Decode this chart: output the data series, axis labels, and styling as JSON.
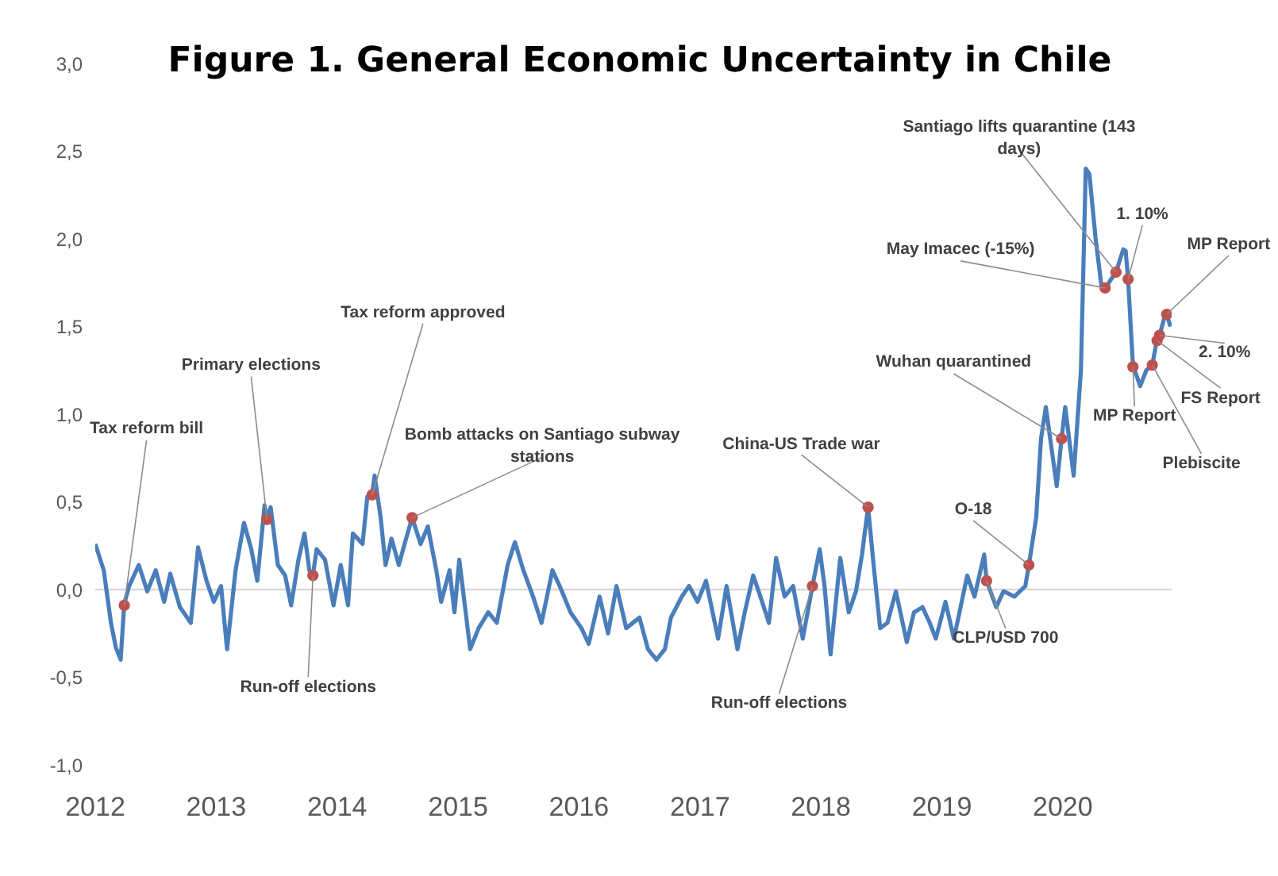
{
  "chart_data": {
    "type": "line",
    "title": "Figure 1. General Economic Uncertainty in Chile",
    "xlim": [
      2012,
      2020.9
    ],
    "xticks": [
      2012,
      2013,
      2014,
      2015,
      2016,
      2017,
      2018,
      2019,
      2020
    ],
    "ylim": [
      -1,
      3
    ],
    "yticks": [
      {
        "value": -1,
        "label": "-1,0"
      },
      {
        "value": -0.5,
        "label": "-0,5"
      },
      {
        "value": 0,
        "label": "0,0"
      },
      {
        "value": 0.5,
        "label": "0,5"
      },
      {
        "value": 1,
        "label": "1,0"
      },
      {
        "value": 1.5,
        "label": "1,5"
      },
      {
        "value": 2,
        "label": "2,0"
      },
      {
        "value": 2.5,
        "label": "2,5"
      },
      {
        "value": 3,
        "label": "3,0"
      }
    ],
    "ref_lines": [
      {
        "axis": "y",
        "value": 0,
        "color": "#d9d9d9"
      }
    ],
    "series": [
      {
        "color": "#4a7ebb",
        "marker": "none",
        "x": [
          2012.0,
          2012.07,
          2012.13,
          2012.17,
          2012.21,
          2012.24,
          2012.28,
          2012.36,
          2012.43,
          2012.5,
          2012.57,
          2012.62,
          2012.7,
          2012.79,
          2012.85,
          2012.92,
          2012.98,
          2013.04,
          2013.09,
          2013.16,
          2013.23,
          2013.29,
          2013.34,
          2013.4,
          2013.42,
          2013.45,
          2013.51,
          2013.57,
          2013.62,
          2013.68,
          2013.73,
          2013.77,
          2013.8,
          2013.83,
          2013.9,
          2013.97,
          2014.03,
          2014.09,
          2014.13,
          2014.21,
          2014.25,
          2014.29,
          2014.31,
          2014.36,
          2014.4,
          2014.45,
          2014.51,
          2014.57,
          2014.62,
          2014.69,
          2014.75,
          2014.82,
          2014.86,
          2014.93,
          2014.97,
          2015.01,
          2015.1,
          2015.17,
          2015.25,
          2015.32,
          2015.41,
          2015.47,
          2015.54,
          2015.62,
          2015.69,
          2015.78,
          2015.84,
          2015.93,
          2016.02,
          2016.08,
          2016.17,
          2016.24,
          2016.31,
          2016.39,
          2016.5,
          2016.57,
          2016.64,
          2016.71,
          2016.76,
          2016.85,
          2016.91,
          2016.98,
          2017.05,
          2017.15,
          2017.22,
          2017.31,
          2017.37,
          2017.44,
          2017.5,
          2017.57,
          2017.63,
          2017.7,
          2017.77,
          2017.85,
          2017.93,
          2017.99,
          2018.03,
          2018.08,
          2018.16,
          2018.23,
          2018.29,
          2018.34,
          2018.39,
          2018.44,
          2018.49,
          2018.55,
          2018.62,
          2018.71,
          2018.77,
          2018.84,
          2018.9,
          2018.95,
          2019.03,
          2019.1,
          2019.21,
          2019.27,
          2019.35,
          2019.37,
          2019.45,
          2019.51,
          2019.6,
          2019.69,
          2019.72,
          2019.78,
          2019.82,
          2019.86,
          2019.95,
          2019.99,
          2020.02,
          2020.09,
          2020.15,
          2020.19,
          2020.22,
          2020.27,
          2020.32,
          2020.35,
          2020.39,
          2020.44,
          2020.5,
          2020.52,
          2020.54,
          2020.58,
          2020.64,
          2020.69,
          2020.74,
          2020.78,
          2020.8,
          2020.84,
          2020.86,
          2020.89
        ],
        "values": [
          0.26,
          0.11,
          -0.19,
          -0.33,
          -0.4,
          -0.08,
          0.02,
          0.14,
          -0.01,
          0.11,
          -0.07,
          0.09,
          -0.1,
          -0.19,
          0.24,
          0.05,
          -0.07,
          0.02,
          -0.34,
          0.11,
          0.38,
          0.23,
          0.05,
          0.48,
          0.4,
          0.47,
          0.14,
          0.08,
          -0.09,
          0.17,
          0.32,
          0.11,
          0.08,
          0.23,
          0.17,
          -0.09,
          0.14,
          -0.09,
          0.32,
          0.26,
          0.53,
          0.55,
          0.65,
          0.41,
          0.14,
          0.29,
          0.14,
          0.29,
          0.41,
          0.26,
          0.36,
          0.11,
          -0.07,
          0.11,
          -0.13,
          0.17,
          -0.34,
          -0.22,
          -0.13,
          -0.19,
          0.14,
          0.27,
          0.11,
          -0.04,
          -0.19,
          0.11,
          0.02,
          -0.13,
          -0.22,
          -0.31,
          -0.04,
          -0.25,
          0.02,
          -0.22,
          -0.16,
          -0.34,
          -0.4,
          -0.34,
          -0.16,
          -0.04,
          0.02,
          -0.07,
          0.05,
          -0.28,
          0.02,
          -0.34,
          -0.13,
          0.08,
          -0.04,
          -0.19,
          0.18,
          -0.04,
          0.02,
          -0.28,
          0.02,
          0.23,
          0.02,
          -0.37,
          0.18,
          -0.13,
          -0.01,
          0.2,
          0.47,
          0.11,
          -0.22,
          -0.19,
          -0.01,
          -0.3,
          -0.13,
          -0.1,
          -0.19,
          -0.28,
          -0.07,
          -0.28,
          0.08,
          -0.04,
          0.2,
          0.05,
          -0.1,
          -0.01,
          -0.04,
          0.02,
          0.14,
          0.41,
          0.86,
          1.04,
          0.59,
          0.86,
          1.04,
          0.65,
          1.25,
          2.4,
          2.37,
          2.01,
          1.73,
          1.71,
          1.76,
          1.81,
          1.94,
          1.93,
          1.77,
          1.28,
          1.16,
          1.25,
          1.28,
          1.43,
          1.45,
          1.55,
          1.57,
          1.5
        ]
      },
      {
        "type": "scatter",
        "color": "#c0504d",
        "marker": "circle",
        "x": [
          2012.24,
          2013.42,
          2013.8,
          2014.29,
          2014.62,
          2017.93,
          2018.39,
          2019.37,
          2019.72,
          2019.99,
          2020.35,
          2020.44,
          2020.54,
          2020.86,
          2020.8,
          2020.78,
          2020.58,
          2020.74
        ],
        "values": [
          -0.09,
          0.4,
          0.08,
          0.54,
          0.41,
          0.02,
          0.47,
          0.05,
          0.14,
          0.86,
          1.72,
          1.81,
          1.77,
          1.57,
          1.45,
          1.42,
          1.27,
          1.28
        ]
      }
    ],
    "annotations": [
      {
        "text": "Tax reform bill",
        "x": 2012.24,
        "y": -0.09
      },
      {
        "text": "Primary elections",
        "x": 2013.42,
        "y": 0.4
      },
      {
        "text": "Run-off elections",
        "x": 2013.8,
        "y": 0.08
      },
      {
        "text": "Tax reform approved",
        "x": 2014.29,
        "y": 0.54
      },
      {
        "text": "Bomb attacks on Santiago subway stations",
        "x": 2014.62,
        "y": 0.41
      },
      {
        "text": "Run-off elections",
        "x": 2017.93,
        "y": 0.02
      },
      {
        "text": "China-US Trade war",
        "x": 2018.39,
        "y": 0.47
      },
      {
        "text": "CLP/USD 700",
        "x": 2019.37,
        "y": 0.05
      },
      {
        "text": "O-18",
        "x": 2019.72,
        "y": 0.14
      },
      {
        "text": "Wuhan quarantined",
        "x": 2019.99,
        "y": 0.86
      },
      {
        "text": "May Imacec (-15%)",
        "x": 2020.35,
        "y": 1.72
      },
      {
        "text": "Santiago lifts quarantine (143 days)",
        "x": 2020.44,
        "y": 1.81
      },
      {
        "text": "1. 10%",
        "x": 2020.54,
        "y": 1.77
      },
      {
        "text": "MP Report",
        "x": 2020.86,
        "y": 1.57
      },
      {
        "text": "2.  10%",
        "x": 2020.8,
        "y": 1.45
      },
      {
        "text": "FS Report",
        "x": 2020.78,
        "y": 1.42
      },
      {
        "text": "MP Report",
        "x": 2020.58,
        "y": 1.27
      },
      {
        "text": "Plebiscite",
        "x": 2020.74,
        "y": 1.28
      }
    ]
  }
}
